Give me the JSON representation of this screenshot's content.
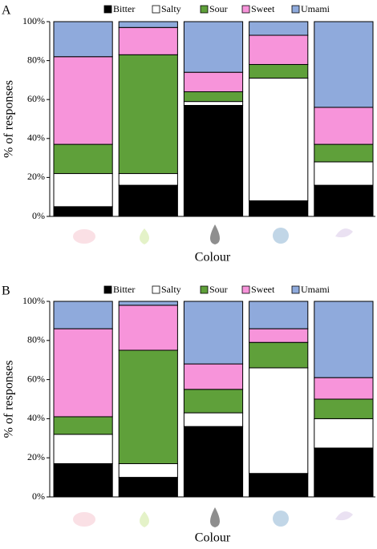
{
  "chart_data": [
    {
      "type": "bar",
      "stacked": true,
      "title": "A",
      "xlabel": "Colour",
      "ylabel": "% of responses",
      "categories": [
        null,
        null,
        null,
        null,
        null
      ],
      "series": [
        {
          "name": "Bitter",
          "color": "#000000",
          "values": [
            5,
            16,
            57,
            8,
            16
          ]
        },
        {
          "name": "Salty",
          "color": "#ffffff",
          "values": [
            17,
            6,
            2,
            63,
            12
          ]
        },
        {
          "name": "Sour",
          "color": "#5fa03a",
          "values": [
            15,
            61,
            5,
            7,
            9
          ]
        },
        {
          "name": "Sweet",
          "color": "#f794da",
          "values": [
            45,
            14,
            10,
            15,
            19
          ]
        },
        {
          "name": "Umami",
          "color": "#8faadc",
          "values": [
            18,
            3,
            26,
            7,
            44
          ]
        }
      ],
      "ylim": [
        0,
        100
      ],
      "yticks": [
        {
          "value": 0,
          "label": "0%"
        },
        {
          "value": 20,
          "label": "20%"
        },
        {
          "value": 40,
          "label": "40%"
        },
        {
          "value": 60,
          "label": "60%"
        },
        {
          "value": 80,
          "label": "80%"
        },
        {
          "value": 100,
          "label": "100%"
        }
      ],
      "grid": false,
      "legend": "top"
    },
    {
      "type": "bar",
      "stacked": true,
      "title": "B",
      "xlabel": "Colour",
      "ylabel": "% of responses",
      "categories": [
        null,
        null,
        null,
        null,
        null
      ],
      "series": [
        {
          "name": "Bitter",
          "color": "#000000",
          "values": [
            17,
            10,
            36,
            12,
            25
          ]
        },
        {
          "name": "Salty",
          "color": "#ffffff",
          "values": [
            15,
            7,
            7,
            54,
            15
          ]
        },
        {
          "name": "Sour",
          "color": "#5fa03a",
          "values": [
            9,
            58,
            12,
            13,
            10
          ]
        },
        {
          "name": "Sweet",
          "color": "#f794da",
          "values": [
            45,
            23,
            13,
            7,
            11
          ]
        },
        {
          "name": "Umami",
          "color": "#8faadc",
          "values": [
            14,
            2,
            32,
            14,
            39
          ]
        }
      ],
      "ylim": [
        0,
        100
      ],
      "yticks": [
        {
          "value": 0,
          "label": "0%"
        },
        {
          "value": 20,
          "label": "20%"
        },
        {
          "value": 40,
          "label": "40%"
        },
        {
          "value": 60,
          "label": "60%"
        },
        {
          "value": 80,
          "label": "80%"
        },
        {
          "value": 100,
          "label": "100%"
        }
      ],
      "grid": false,
      "legend": "top"
    }
  ]
}
